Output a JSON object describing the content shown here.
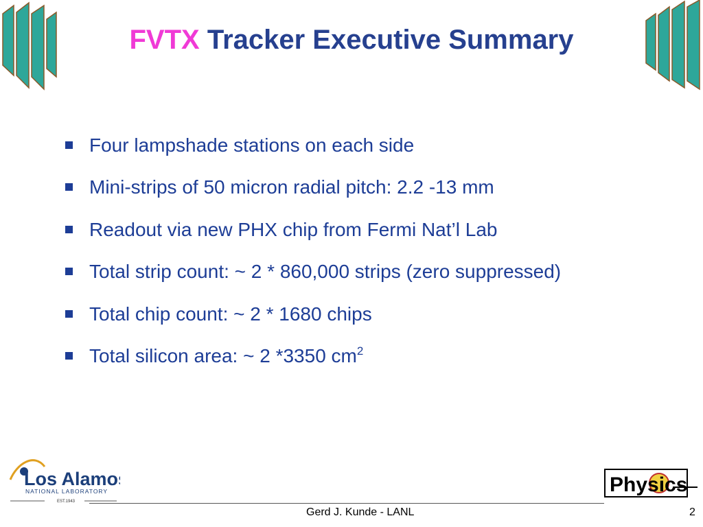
{
  "header": {
    "title_highlight": "FVTX",
    "title_rest": "Tracker Executive Summary"
  },
  "bullets": [
    {
      "text": "Four lampshade stations on each side"
    },
    {
      "text": "Mini-strips of 50 micron radial pitch:  2.2 -13 mm"
    },
    {
      "text": "Readout via new PHX chip from Fermi Nat’l Lab"
    },
    {
      "text": "Total strip count:   ~ 2 * 860,000 strips (zero suppressed)"
    },
    {
      "text": "Total chip count:   ~ 2 * 1680 chips"
    },
    {
      "text": "Total silicon area: ~  2 *3350 cm",
      "sup": "2"
    }
  ],
  "logos": {
    "lanl_name": "Los Alamos",
    "lanl_sub": "NATIONAL LABORATORY",
    "lanl_est": "EST.1943",
    "physics": "Physics"
  },
  "footer": {
    "author": "Gerd J. Kunde - LANL",
    "page": "2"
  }
}
